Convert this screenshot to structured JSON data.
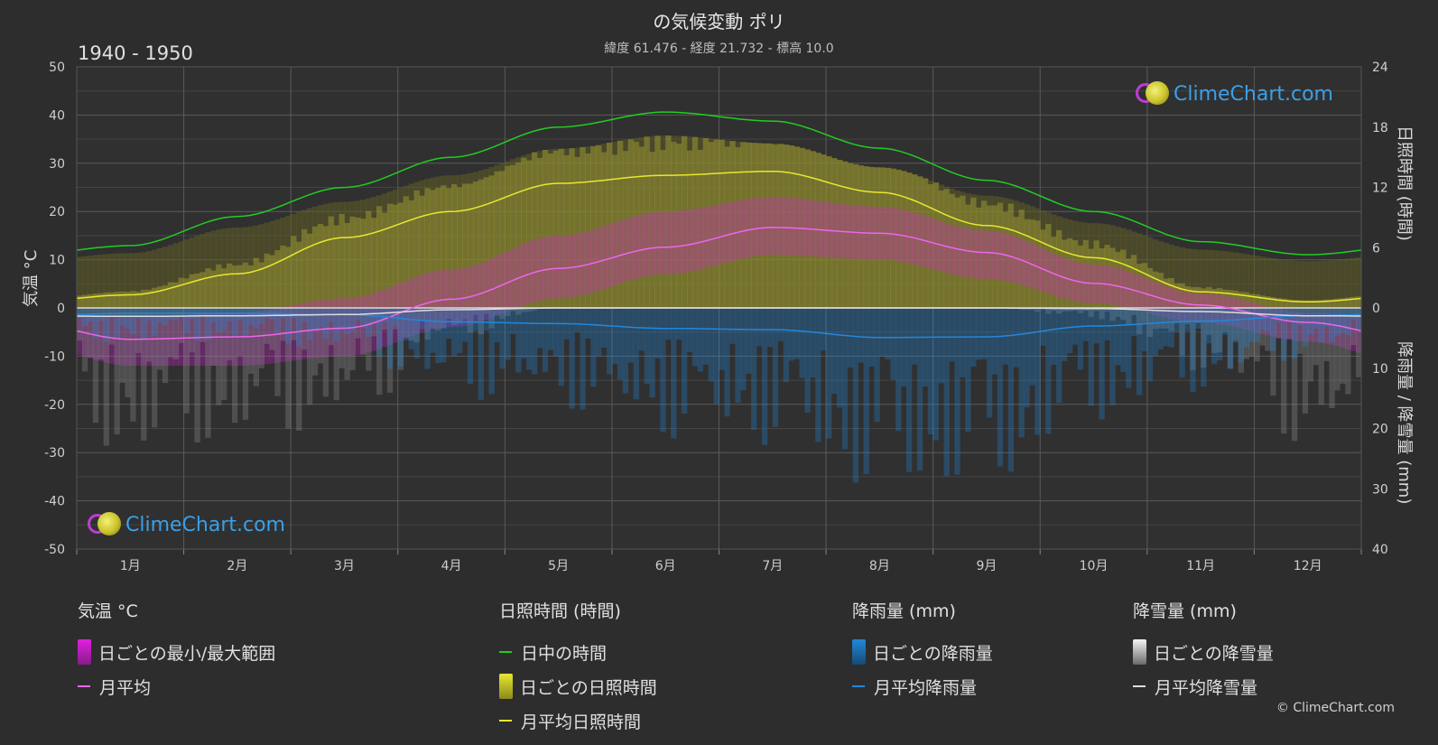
{
  "title": "の気候変動 ポリ",
  "subtitle": "緯度 61.476 - 経度 21.732 - 標高 10.0",
  "period": "1940 - 1950",
  "logo_text": "ClimeChart.com",
  "copyright": "© ClimeChart.com",
  "axes": {
    "left_title": "気温 °C",
    "right_top_title": "日照時間 (時間)",
    "right_bottom_title": "降雨量 / 降雪量 (mm)",
    "left_ticks": [
      "50",
      "40",
      "30",
      "20",
      "10",
      "0",
      "-10",
      "-20",
      "-30",
      "-40",
      "-50"
    ],
    "right_top_ticks": [
      "24",
      "18",
      "12",
      "6",
      "0"
    ],
    "right_bottom_ticks": [
      "10",
      "20",
      "30",
      "40"
    ]
  },
  "chart_data": {
    "type": "line",
    "categories": [
      "1月",
      "2月",
      "3月",
      "4月",
      "5月",
      "6月",
      "7月",
      "8月",
      "9月",
      "10月",
      "11月",
      "12月"
    ],
    "temp_ylim": [
      -50,
      50
    ],
    "sunshine_ylim": [
      0,
      24
    ],
    "precip_ylim": [
      0,
      40
    ],
    "grid": true,
    "series": [
      {
        "name": "日中の時間",
        "axis": "sunshine_hours",
        "color": "#22cc22",
        "values": [
          6.2,
          9.1,
          12.0,
          15.0,
          18.0,
          19.5,
          18.6,
          15.9,
          12.7,
          9.6,
          6.6,
          5.3
        ]
      },
      {
        "name": "月平均日照時間",
        "axis": "sunshine_hours",
        "color": "#e8e830",
        "values": [
          1.3,
          3.4,
          7.0,
          9.6,
          12.4,
          13.2,
          13.6,
          11.5,
          8.2,
          5.0,
          1.6,
          0.6
        ]
      },
      {
        "name": "月平均",
        "axis": "temperature_c",
        "color": "#ee66ee",
        "values": [
          -6.5,
          -6.0,
          -4.2,
          1.8,
          8.2,
          12.6,
          16.7,
          15.5,
          11.5,
          5.1,
          0.6,
          -3.0
        ]
      },
      {
        "name": "月平均降雨量",
        "axis": "precip_mm",
        "color": "#2288dd",
        "values": [
          0.9,
          0.9,
          1.1,
          2.3,
          2.6,
          3.4,
          3.6,
          4.9,
          4.8,
          3.0,
          2.2,
          1.3
        ]
      },
      {
        "name": "月平均降雪量",
        "axis": "precip_mm",
        "color": "#dddddd",
        "values": [
          1.4,
          1.3,
          1.1,
          0.3,
          0.0,
          0.0,
          0.0,
          0.0,
          0.0,
          0.1,
          0.6,
          1.3
        ]
      }
    ],
    "daily_temp_max": [
      -2,
      -1,
      2,
      8,
      15,
      20,
      23,
      21,
      16,
      9,
      3,
      -1
    ],
    "daily_temp_min": [
      -12,
      -12,
      -10,
      -4,
      2,
      7,
      11,
      10,
      6,
      1,
      -3,
      -7
    ]
  },
  "legend": {
    "temperature": {
      "header": "気温 °C",
      "items": [
        "日ごとの最小/最大範囲",
        "月平均"
      ]
    },
    "sunshine": {
      "header": "日照時間 (時間)",
      "items": [
        "日中の時間",
        "日ごとの日照時間",
        "月平均日照時間"
      ]
    },
    "rain": {
      "header": "降雨量 (mm)",
      "items": [
        "日ごとの降雨量",
        "月平均降雨量"
      ]
    },
    "snow": {
      "header": "降雪量 (mm)",
      "items": [
        "日ごとの降雪量",
        "月平均降雪量"
      ]
    }
  },
  "colors": {
    "background": "#2d2d2d",
    "grid": "#5a5a5a",
    "daylight": "#22cc22",
    "sunshine": "#e8e830",
    "temp_range": "#e020e0",
    "temp_mean": "#ee66ee",
    "rain": "#2288dd",
    "snow": "#dddddd"
  }
}
